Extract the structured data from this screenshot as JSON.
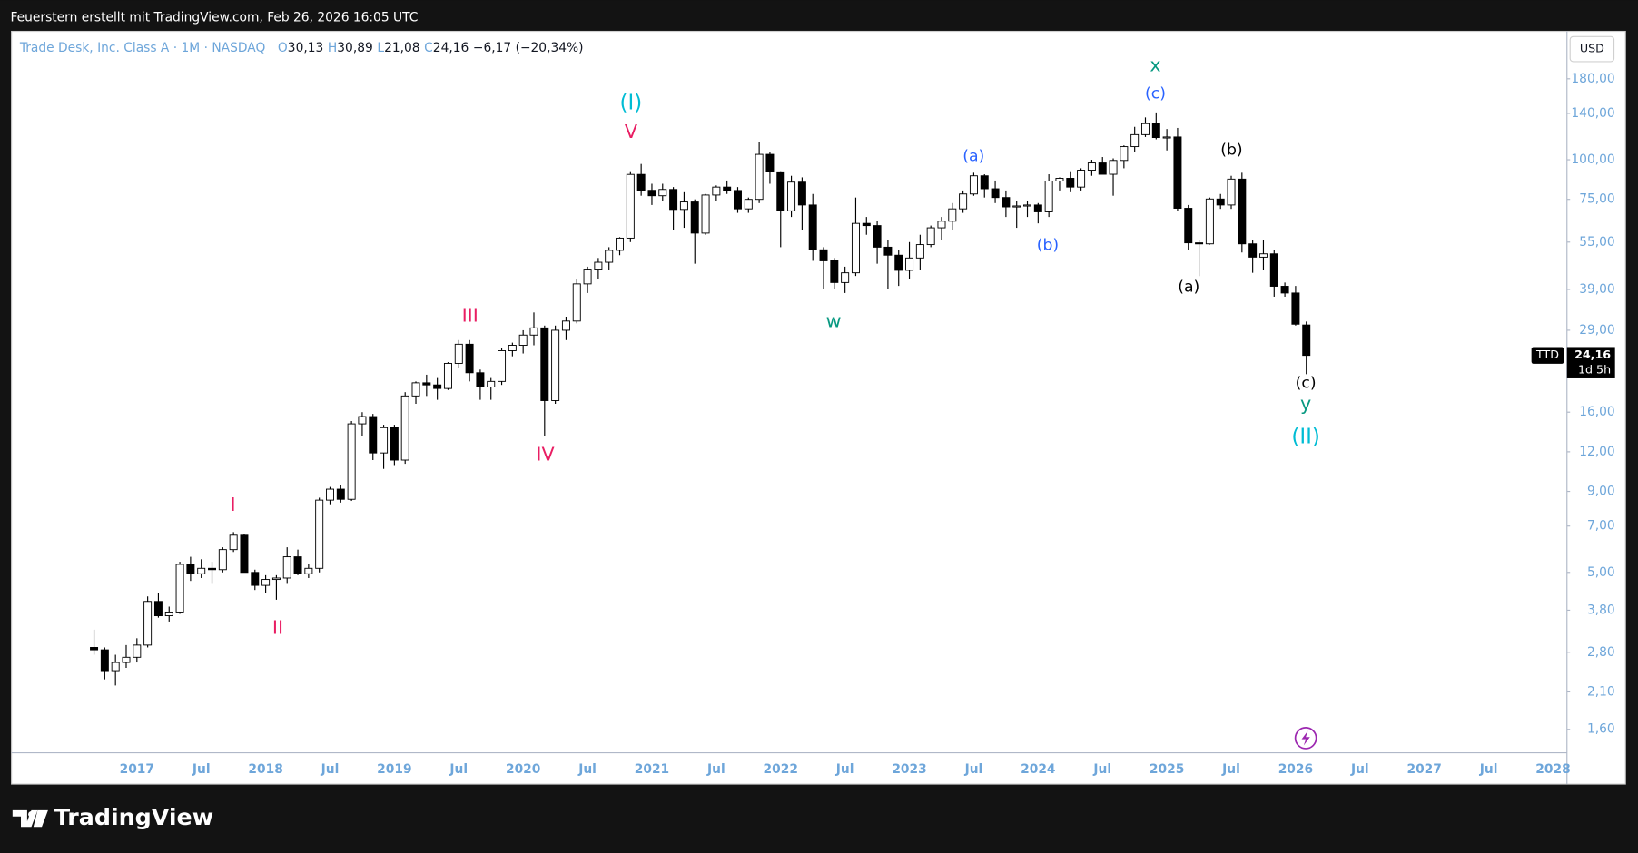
{
  "header": "Feuerstern erstellt mit TradingView.com, Feb 26, 2026 16:05 UTC",
  "logo": "TradingView",
  "chart_data": {
    "type": "candlestick",
    "title": "Trade Desk, Inc. Class A · 1M · NASDAQ",
    "legend_fields": [
      {
        "key": "O",
        "value": "30,13"
      },
      {
        "key": "H",
        "value": "30,89"
      },
      {
        "key": "L",
        "value": "21,08"
      },
      {
        "key": "C",
        "value": "24,16"
      }
    ],
    "change": "−6,17 (−20,34%)",
    "currency": "USD",
    "price_label": {
      "symbol": "TTD",
      "price": "24,16",
      "countdown": "1d 5h"
    },
    "log_scale": true,
    "up_color": "#ffffff",
    "down_color": "#000000",
    "categories": [
      null,
      null,
      null,
      null,
      "2017",
      null,
      null,
      null,
      null,
      null,
      "Jul",
      null,
      null,
      null,
      null,
      null,
      "2018",
      null,
      null,
      null,
      null,
      null,
      "Jul",
      null,
      null,
      null,
      null,
      null,
      "2019",
      null,
      null,
      null,
      null,
      null,
      "Jul",
      null,
      null,
      null,
      null,
      null,
      "2020",
      null,
      null,
      null,
      null,
      null,
      "Jul",
      null,
      null,
      null,
      null,
      null,
      "2021",
      null,
      null,
      null,
      null,
      null,
      "Jul",
      null,
      null,
      null,
      null,
      null,
      "2022",
      null,
      null,
      null,
      null,
      null,
      "Jul",
      null,
      null,
      null,
      null,
      null,
      "2023",
      null,
      null,
      null,
      null,
      null,
      "Jul",
      null,
      null,
      null,
      null,
      null,
      "2024",
      null,
      null,
      null,
      null,
      null,
      "Jul",
      null,
      null,
      null,
      null,
      null,
      "2025",
      null,
      null,
      null,
      null,
      null,
      "Jul",
      null,
      null,
      null,
      null,
      null,
      "2026",
      null,
      null,
      null,
      null,
      null,
      "Jul",
      null,
      null,
      null,
      null,
      null,
      "2027",
      null,
      null,
      null,
      null,
      null,
      "Jul",
      null,
      null,
      null,
      null,
      null,
      "2028"
    ],
    "open": [
      2.9,
      2.85,
      2.45,
      2.6,
      2.7,
      2.95,
      4.05,
      3.65,
      3.75,
      5.3,
      4.95,
      5.15,
      5.1,
      5.9,
      6.55,
      5.0,
      4.55,
      4.75,
      4.8,
      5.6,
      4.95,
      5.15,
      8.45,
      9.15,
      8.5,
      14.7,
      15.5,
      11.9,
      14.3,
      11.3,
      18,
      19.8,
      19.5,
      19,
      22.8,
      26.2,
      21.3,
      19.2,
      20,
      25,
      26,
      28,
      29.5,
      17.4,
      29,
      31,
      40.6,
      45.2,
      47.5,
      51.8,
      56.6,
      89.9,
      80.1,
      77,
      80.6,
      69.7,
      73.6,
      58.7,
      77.4,
      82,
      80,
      70,
      75,
      104,
      91.6,
      69,
      85,
      72,
      52,
      48,
      41,
      44,
      63,
      62,
      53,
      50,
      44.8,
      49,
      54,
      61,
      64,
      70,
      78,
      89,
      81,
      76,
      71,
      71.5,
      72,
      68.5,
      85.7,
      87.4,
      82,
      92.7,
      97.7,
      90,
      99.5,
      110,
      120,
      130,
      117.5,
      118,
      70.3,
      54.7,
      54.3,
      75.2,
      72,
      86.9,
      54.3,
      49.3,
      50.5,
      39.9,
      38,
      30.13,
      null,
      null,
      null,
      null,
      null,
      null,
      null,
      null,
      null,
      null,
      null,
      null,
      null,
      null,
      null,
      null,
      null,
      null,
      null,
      null,
      null,
      null,
      null
    ],
    "high": [
      3.3,
      2.9,
      2.75,
      2.95,
      3.1,
      4.2,
      4.3,
      3.9,
      5.4,
      5.6,
      5.5,
      5.4,
      6.0,
      6.7,
      6.6,
      5.1,
      4.9,
      4.9,
      6.0,
      5.9,
      5.3,
      8.6,
      9.3,
      9.4,
      15,
      16,
      15.8,
      14.6,
      14.6,
      18.5,
      20,
      21,
      20.5,
      23,
      27,
      27,
      21.8,
      20.5,
      25.5,
      26.5,
      29,
      33,
      30,
      30,
      32,
      42,
      46,
      49,
      53,
      57,
      92,
      97,
      84,
      84,
      82,
      79,
      75,
      78,
      83,
      86,
      82,
      76,
      114,
      106,
      92,
      89,
      88,
      78,
      53,
      49,
      46,
      76,
      66,
      64,
      56,
      52,
      55,
      58,
      62,
      66,
      73,
      80,
      91,
      90,
      86,
      80,
      74,
      74,
      73,
      90,
      88,
      92,
      94,
      100,
      102,
      101,
      111,
      127,
      136,
      141,
      125,
      126,
      72,
      56,
      76,
      78,
      89,
      91,
      56,
      56,
      52,
      41,
      40,
      30.89,
      null,
      null,
      null,
      null,
      null,
      null,
      null,
      null,
      null,
      null,
      null,
      null,
      null,
      null,
      null,
      null,
      null,
      null,
      null,
      null,
      null,
      null,
      null
    ],
    "low": [
      2.75,
      2.3,
      2.2,
      2.5,
      2.6,
      2.9,
      3.6,
      3.5,
      3.7,
      4.7,
      4.8,
      4.6,
      5.0,
      5.8,
      5.0,
      4.4,
      4.3,
      4.1,
      4.6,
      4.9,
      4.8,
      5.0,
      8.2,
      8.3,
      8.4,
      13.5,
      11.3,
      10.6,
      10.9,
      11,
      17,
      18,
      17.5,
      18.8,
      22,
      20,
      17.5,
      17.5,
      19.5,
      24,
      24.5,
      26,
      13.5,
      17,
      27,
      30.5,
      38,
      42,
      45,
      50,
      55,
      77,
      72,
      74,
      60,
      61,
      47,
      58,
      74,
      78,
      68,
      68,
      73,
      84,
      53,
      66,
      60,
      48,
      39,
      39,
      38,
      43,
      58,
      47,
      39,
      40,
      42,
      45,
      53,
      56,
      60,
      68,
      77,
      76,
      73,
      66,
      61,
      66,
      63,
      66,
      80,
      79,
      80,
      89,
      90,
      77,
      94,
      106,
      118,
      116,
      107,
      69,
      52,
      42.96,
      54,
      70,
      70,
      51,
      44,
      45,
      37,
      37,
      30,
      21.08,
      null,
      null,
      null,
      null,
      null,
      null,
      null,
      null,
      null,
      null,
      null,
      null,
      null,
      null,
      null,
      null,
      null,
      null,
      null,
      null,
      null,
      null,
      null
    ],
    "close": [
      2.85,
      2.45,
      2.6,
      2.7,
      2.95,
      4.05,
      3.65,
      3.75,
      5.3,
      4.95,
      5.15,
      5.1,
      5.9,
      6.55,
      5.0,
      4.55,
      4.75,
      4.8,
      5.6,
      4.95,
      5.15,
      8.45,
      9.15,
      8.5,
      14.7,
      15.5,
      11.9,
      14.3,
      11.3,
      18,
      19.8,
      19.5,
      19,
      22.8,
      26.2,
      21.3,
      19.2,
      20,
      25,
      26,
      28,
      29.5,
      17.4,
      29,
      31,
      40.6,
      45.2,
      47.5,
      51.8,
      56.6,
      89.9,
      80.1,
      77,
      80.6,
      69.7,
      73.6,
      58.7,
      77.4,
      82,
      80,
      70,
      75,
      104,
      91.6,
      69,
      85,
      72,
      52,
      48,
      41,
      44,
      63,
      62,
      53,
      50,
      44.8,
      49,
      54,
      61,
      64,
      70,
      78,
      89,
      81,
      76,
      71,
      71.5,
      72,
      68.5,
      85.7,
      87.4,
      82,
      92.7,
      97.7,
      90,
      99.5,
      110,
      120,
      130,
      117.5,
      118,
      70.3,
      54.7,
      54.3,
      75.2,
      72,
      86.9,
      54.3,
      49.3,
      50.5,
      39.9,
      38,
      30.3,
      24.16,
      null,
      null,
      null,
      null,
      null,
      null,
      null,
      null,
      null,
      null,
      null,
      null,
      null,
      null,
      null,
      null,
      null,
      null,
      null,
      null,
      null,
      null,
      null
    ],
    "ylim": [
      1.35,
      254
    ],
    "yticks": [
      {
        "value": 180,
        "label": "180,00"
      },
      {
        "value": 140,
        "label": "140,00"
      },
      {
        "value": 100,
        "label": "100,00"
      },
      {
        "value": 75,
        "label": "75,00"
      },
      {
        "value": 55,
        "label": "55,00"
      },
      {
        "value": 39,
        "label": "39,00"
      },
      {
        "value": 29,
        "label": "29,00"
      },
      {
        "value": 16,
        "label": "16,00"
      },
      {
        "value": 12,
        "label": "12,00"
      },
      {
        "value": 9,
        "label": "9,00"
      },
      {
        "value": 7,
        "label": "7,00"
      },
      {
        "value": 5,
        "label": "5,00"
      },
      {
        "value": 3.8,
        "label": "3,80"
      },
      {
        "value": 2.8,
        "label": "2,80"
      },
      {
        "value": 2.1,
        "label": "2,10"
      },
      {
        "value": 1.6,
        "label": "1,60"
      }
    ],
    "annotations": [
      {
        "text": "(I)",
        "color": "#00bcd4"
      },
      {
        "text": "V",
        "color": "#e91e63"
      },
      {
        "text": "III",
        "color": "#e91e63"
      },
      {
        "text": "IV",
        "color": "#e91e63"
      },
      {
        "text": "I",
        "color": "#e91e63"
      },
      {
        "text": "II",
        "color": "#e91e63"
      },
      {
        "text": "w",
        "color": "#089981"
      },
      {
        "text": "x",
        "color": "#089981"
      },
      {
        "text": "(c)",
        "color": "#2962ff"
      },
      {
        "text": "(a)",
        "color": "#2962ff"
      },
      {
        "text": "(b)",
        "color": "#2962ff"
      },
      {
        "text": "(b)",
        "color": "#000000"
      },
      {
        "text": "(a)",
        "color": "#000000"
      },
      {
        "text": "(c)",
        "color": "#000000"
      },
      {
        "text": "y",
        "color": "#089981"
      },
      {
        "text": "(II)",
        "color": "#00bcd4"
      }
    ]
  }
}
